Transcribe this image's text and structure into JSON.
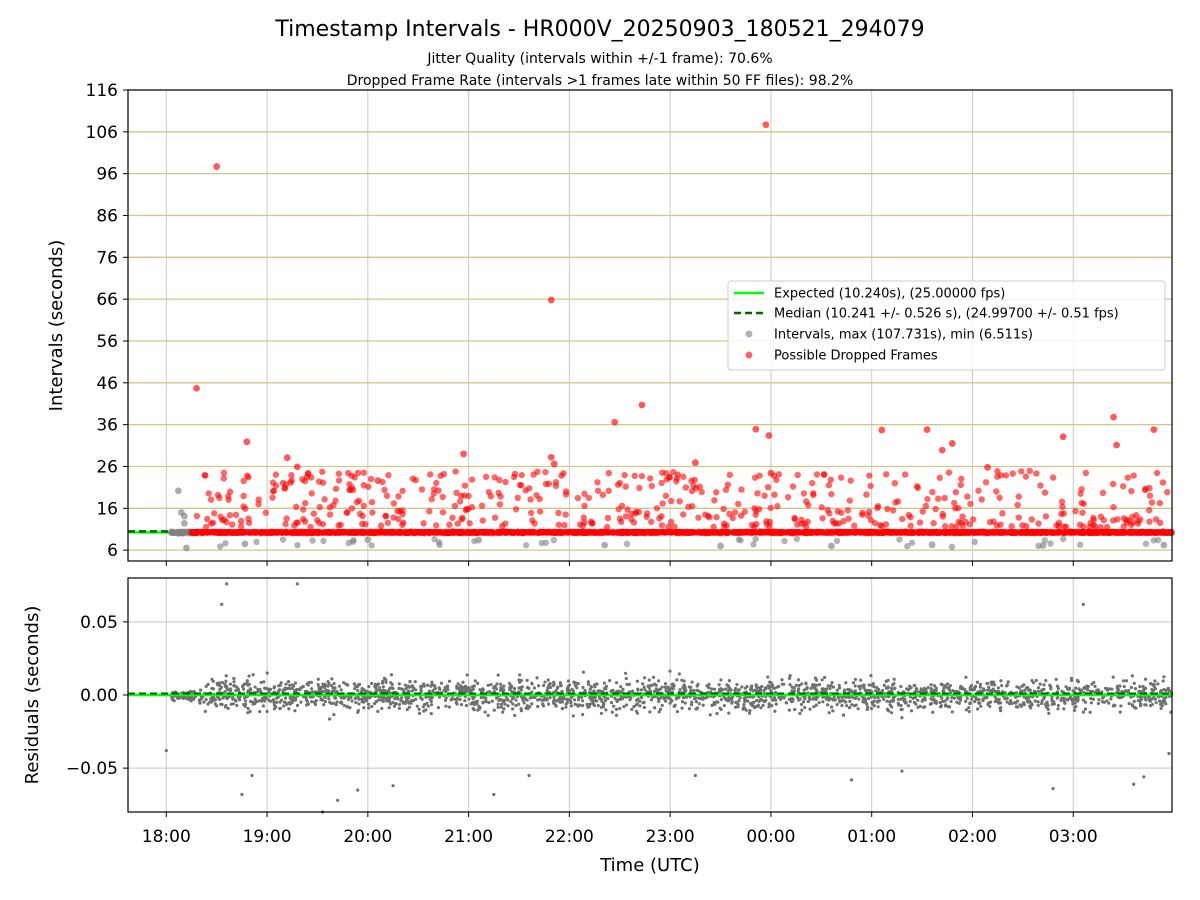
{
  "chart_data": [
    {
      "type": "scatter",
      "title": "Timestamp Intervals - HR000V_20250903_180521_294079",
      "subtitle_lines": [
        "Jitter Quality (intervals within +/-1 frame): 70.6%",
        "Dropped Frame Rate (intervals >1 frames late within 50 FF files): 98.2%"
      ],
      "ylabel": "Intervals (seconds)",
      "ylim": [
        3.4,
        116
      ],
      "yticks": [
        "6",
        "16",
        "26",
        "36",
        "46",
        "56",
        "66",
        "76",
        "86",
        "96",
        "106",
        "116"
      ],
      "ytick_values": [
        6,
        16,
        26,
        36,
        46,
        56,
        66,
        76,
        86,
        96,
        106,
        116
      ],
      "xlim_hours": [
        17.62,
        27.98
      ],
      "grid": true,
      "legend_position": "center-right",
      "legend": [
        {
          "label": "Expected (10.240s), (25.00000 fps)",
          "style": "solid-line",
          "color": "#00ff00"
        },
        {
          "label": "Median (10.241 +/- 0.526 s), (24.99700 +/- 0.51 fps)",
          "style": "dashed-line",
          "color": "#006400"
        },
        {
          "label": "Intervals, max (107.731s), min (6.511s)",
          "style": "marker",
          "color": "#808080"
        },
        {
          "label": "Possible Dropped Frames",
          "style": "marker",
          "color": "#ff0000"
        }
      ],
      "expected_interval": 10.24,
      "median_interval": 10.241,
      "series": [
        {
          "name": "Possible Dropped Frames",
          "points": [
            [
              18.3,
              44.7
            ],
            [
              18.5,
              97.7
            ],
            [
              18.8,
              31.9
            ],
            [
              19.2,
              28.1
            ],
            [
              19.3,
              25.9
            ],
            [
              20.1,
              22.6
            ],
            [
              20.95,
              29.0
            ],
            [
              21.82,
              65.8
            ],
            [
              21.82,
              28.2
            ],
            [
              21.85,
              26.6
            ],
            [
              22.45,
              36.6
            ],
            [
              22.72,
              40.7
            ],
            [
              23.25,
              26.9
            ],
            [
              23.85,
              34.9
            ],
            [
              23.95,
              107.7
            ],
            [
              23.98,
              33.4
            ],
            [
              24.0,
              24.4
            ],
            [
              25.1,
              34.7
            ],
            [
              25.55,
              34.8
            ],
            [
              25.7,
              29.9
            ],
            [
              25.8,
              31.5
            ],
            [
              26.15,
              25.8
            ],
            [
              26.9,
              33.1
            ],
            [
              27.4,
              37.8
            ],
            [
              27.43,
              31.1
            ],
            [
              27.8,
              34.8
            ]
          ]
        },
        {
          "name": "Intervals, max (107.731s), min (6.511s)",
          "points": [
            [
              18.12,
              20.2
            ],
            [
              18.15,
              15.0
            ],
            [
              18.18,
              14.1
            ],
            [
              18.18,
              12.4
            ],
            [
              18.2,
              6.5
            ],
            [
              18.78,
              7.5
            ],
            [
              20.0,
              8.5
            ],
            [
              21.1,
              8.4
            ],
            [
              22.35,
              7.2
            ],
            [
              23.5,
              7.0
            ],
            [
              24.6,
              7.0
            ],
            [
              25.6,
              7.3
            ],
            [
              26.7,
              7.1
            ],
            [
              27.9,
              7.2
            ]
          ]
        }
      ]
    },
    {
      "type": "scatter",
      "ylabel": "Residuals (seconds)",
      "xlabel": "Time (UTC)",
      "ylim": [
        -0.08,
        0.08
      ],
      "yticks": [
        "0.05",
        "0.00",
        "−0.05"
      ],
      "ytick_values": [
        0.05,
        0.0,
        -0.05
      ],
      "xticks": [
        "18:00",
        "19:00",
        "20:00",
        "21:00",
        "22:00",
        "23:00",
        "00:00",
        "01:00",
        "02:00",
        "03:00"
      ],
      "xtick_hours": [
        18,
        19,
        20,
        21,
        22,
        23,
        24,
        25,
        26,
        27
      ],
      "xlim_hours": [
        17.62,
        27.98
      ],
      "grid": true,
      "expected_residual": 0.0,
      "median_residual": 0.001,
      "series": [
        {
          "name": "Residuals",
          "points": [
            [
              18.0,
              -0.038
            ],
            [
              18.6,
              0.076
            ],
            [
              18.55,
              0.062
            ],
            [
              18.75,
              -0.068
            ],
            [
              18.85,
              -0.055
            ],
            [
              19.3,
              0.076
            ],
            [
              19.55,
              -0.08
            ],
            [
              19.7,
              -0.072
            ],
            [
              19.9,
              -0.065
            ],
            [
              20.25,
              -0.062
            ],
            [
              21.25,
              -0.068
            ],
            [
              21.6,
              -0.055
            ],
            [
              23.25,
              -0.055
            ],
            [
              24.8,
              -0.058
            ],
            [
              25.3,
              -0.052
            ],
            [
              26.8,
              -0.064
            ],
            [
              27.1,
              0.062
            ],
            [
              27.6,
              -0.061
            ],
            [
              27.7,
              -0.056
            ],
            [
              27.95,
              -0.04
            ]
          ]
        }
      ]
    }
  ]
}
